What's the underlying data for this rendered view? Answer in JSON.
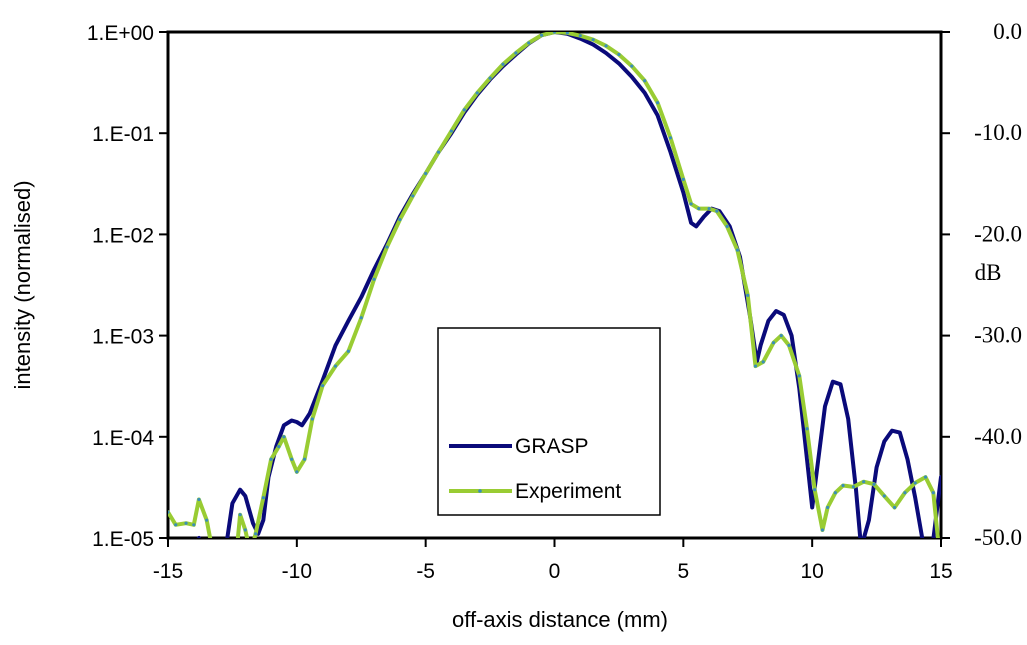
{
  "chart_data": {
    "type": "line",
    "title": "",
    "xlabel": "off-axis distance (mm)",
    "ylabel": "intensity (normalised)",
    "y2label": "dB",
    "xlim": [
      -15,
      15
    ],
    "ylim": [
      1e-05,
      1
    ],
    "yscale": "log",
    "grid": false,
    "legend_position": "bottom-center",
    "x_ticks": [
      "-15",
      "-10",
      "-5",
      "0",
      "5",
      "10",
      "15"
    ],
    "y_ticks": [
      "1.E-05",
      "1.E-04",
      "1.E-03",
      "1.E-02",
      "1.E-01",
      "1.E+00"
    ],
    "y2_ticks": [
      "-50.0",
      "-40.0",
      "-30.0",
      "-20.0",
      "-10.0",
      "0.0"
    ],
    "series": [
      {
        "name": "GRASP",
        "color": "#0a0a7a",
        "points": [
          [
            -13.8,
            1e-05
          ],
          [
            -13.6,
            8e-06
          ],
          [
            -13.0,
            5e-06
          ],
          [
            -12.7,
            1e-05
          ],
          [
            -12.5,
            2.2e-05
          ],
          [
            -12.2,
            3e-05
          ],
          [
            -12.0,
            2.6e-05
          ],
          [
            -11.7,
            1.4e-05
          ],
          [
            -11.5,
            1.1e-05
          ],
          [
            -11.3,
            1.5e-05
          ],
          [
            -11.1,
            4e-05
          ],
          [
            -10.8,
            8e-05
          ],
          [
            -10.5,
            0.00013
          ],
          [
            -10.2,
            0.000145
          ],
          [
            -10.0,
            0.00014
          ],
          [
            -9.8,
            0.00013
          ],
          [
            -9.5,
            0.00017
          ],
          [
            -9.0,
            0.00036
          ],
          [
            -8.5,
            0.0008
          ],
          [
            -8.0,
            0.0014
          ],
          [
            -7.5,
            0.0024
          ],
          [
            -7.0,
            0.0045
          ],
          [
            -6.5,
            0.008
          ],
          [
            -6.0,
            0.015
          ],
          [
            -5.5,
            0.025
          ],
          [
            -5.0,
            0.04
          ],
          [
            -4.5,
            0.065
          ],
          [
            -4.0,
            0.1
          ],
          [
            -3.5,
            0.16
          ],
          [
            -3.0,
            0.24
          ],
          [
            -2.5,
            0.34
          ],
          [
            -2.0,
            0.46
          ],
          [
            -1.5,
            0.6
          ],
          [
            -1.0,
            0.77
          ],
          [
            -0.5,
            0.93
          ],
          [
            0.0,
            1.0
          ],
          [
            0.5,
            0.96
          ],
          [
            1.0,
            0.86
          ],
          [
            1.5,
            0.75
          ],
          [
            2.0,
            0.62
          ],
          [
            2.5,
            0.49
          ],
          [
            3.0,
            0.36
          ],
          [
            3.5,
            0.25
          ],
          [
            4.0,
            0.15
          ],
          [
            4.5,
            0.065
          ],
          [
            5.0,
            0.026
          ],
          [
            5.3,
            0.013
          ],
          [
            5.5,
            0.012
          ],
          [
            5.8,
            0.015
          ],
          [
            6.1,
            0.018
          ],
          [
            6.4,
            0.017
          ],
          [
            6.8,
            0.012
          ],
          [
            7.2,
            0.006
          ],
          [
            7.6,
            0.0015
          ],
          [
            7.85,
            0.00055
          ],
          [
            8.0,
            0.0008
          ],
          [
            8.3,
            0.0014
          ],
          [
            8.6,
            0.00175
          ],
          [
            8.9,
            0.0016
          ],
          [
            9.2,
            0.001
          ],
          [
            9.5,
            0.0003
          ],
          [
            9.8,
            6e-05
          ],
          [
            10.0,
            2e-05
          ],
          [
            10.2,
            5e-05
          ],
          [
            10.5,
            0.0002
          ],
          [
            10.8,
            0.00035
          ],
          [
            11.1,
            0.00033
          ],
          [
            11.4,
            0.00015
          ],
          [
            11.7,
            3e-05
          ],
          [
            11.9,
            8e-06
          ],
          [
            12.2,
            1.5e-05
          ],
          [
            12.5,
            5e-05
          ],
          [
            12.8,
            9e-05
          ],
          [
            13.1,
            0.000115
          ],
          [
            13.4,
            0.00011
          ],
          [
            13.7,
            6e-05
          ],
          [
            14.0,
            2.5e-05
          ],
          [
            14.3,
            9e-06
          ],
          [
            14.6,
            6e-06
          ],
          [
            15.0,
            4e-05
          ]
        ]
      },
      {
        "name": "Experiment",
        "color": "#99cc33",
        "marker_color": "#3a8fb7",
        "points": [
          [
            -15.0,
            1.8e-05
          ],
          [
            -14.7,
            1.35e-05
          ],
          [
            -14.3,
            1.4e-05
          ],
          [
            -14.0,
            1.35e-05
          ],
          [
            -13.8,
            2.4e-05
          ],
          [
            -13.5,
            1.5e-05
          ],
          [
            -13.2,
            6e-06
          ],
          [
            -12.9,
            5e-06
          ],
          [
            -12.7,
            5e-06
          ],
          [
            -12.4,
            5e-06
          ],
          [
            -12.2,
            1.7e-05
          ],
          [
            -12.0,
            1.2e-05
          ],
          [
            -11.8,
            7e-06
          ],
          [
            -11.6,
            1.1e-05
          ],
          [
            -11.3,
            2.5e-05
          ],
          [
            -11.0,
            6e-05
          ],
          [
            -10.7,
            8e-05
          ],
          [
            -10.5,
            0.0001
          ],
          [
            -10.2,
            6e-05
          ],
          [
            -10.0,
            4.5e-05
          ],
          [
            -9.7,
            6e-05
          ],
          [
            -9.4,
            0.00015
          ],
          [
            -9.0,
            0.00032
          ],
          [
            -8.5,
            0.0005
          ],
          [
            -8.0,
            0.0007
          ],
          [
            -7.5,
            0.0015
          ],
          [
            -7.0,
            0.0036
          ],
          [
            -6.5,
            0.0075
          ],
          [
            -6.0,
            0.014
          ],
          [
            -5.5,
            0.024
          ],
          [
            -5.0,
            0.04
          ],
          [
            -4.5,
            0.065
          ],
          [
            -4.0,
            0.105
          ],
          [
            -3.5,
            0.17
          ],
          [
            -3.0,
            0.25
          ],
          [
            -2.5,
            0.35
          ],
          [
            -2.0,
            0.48
          ],
          [
            -1.5,
            0.62
          ],
          [
            -1.0,
            0.78
          ],
          [
            -0.5,
            0.93
          ],
          [
            0.0,
            1.0
          ],
          [
            0.5,
            0.98
          ],
          [
            1.0,
            0.92
          ],
          [
            1.5,
            0.84
          ],
          [
            2.0,
            0.73
          ],
          [
            2.5,
            0.6
          ],
          [
            3.0,
            0.46
          ],
          [
            3.5,
            0.33
          ],
          [
            4.0,
            0.2
          ],
          [
            4.5,
            0.09
          ],
          [
            5.0,
            0.035
          ],
          [
            5.3,
            0.02
          ],
          [
            5.6,
            0.018
          ],
          [
            6.0,
            0.018
          ],
          [
            6.3,
            0.017
          ],
          [
            6.7,
            0.012
          ],
          [
            7.1,
            0.007
          ],
          [
            7.5,
            0.0025
          ],
          [
            7.8,
            0.0005
          ],
          [
            8.1,
            0.00055
          ],
          [
            8.5,
            0.00085
          ],
          [
            8.8,
            0.001
          ],
          [
            9.1,
            0.0008
          ],
          [
            9.5,
            0.0004
          ],
          [
            9.8,
            0.00012
          ],
          [
            10.1,
            3e-05
          ],
          [
            10.4,
            1.2e-05
          ],
          [
            10.6,
            2e-05
          ],
          [
            10.9,
            2.8e-05
          ],
          [
            11.2,
            3.3e-05
          ],
          [
            11.6,
            3.2e-05
          ],
          [
            12.0,
            3.6e-05
          ],
          [
            12.4,
            3.4e-05
          ],
          [
            12.8,
            2.6e-05
          ],
          [
            13.2,
            2e-05
          ],
          [
            13.6,
            2.8e-05
          ],
          [
            14.0,
            3.5e-05
          ],
          [
            14.4,
            4e-05
          ],
          [
            14.7,
            2.8e-05
          ],
          [
            15.0,
            5e-06
          ]
        ]
      }
    ]
  }
}
